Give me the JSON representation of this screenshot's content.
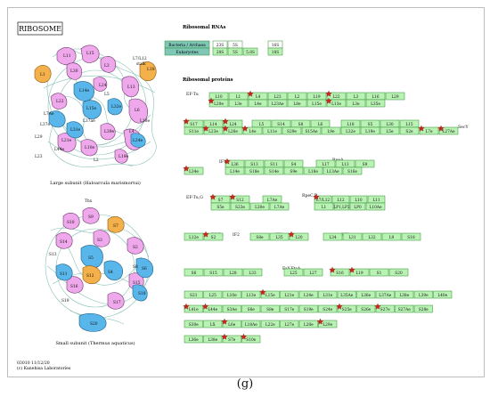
{
  "title": "RIBOSOME",
  "panel_label": "(g)",
  "footer": [
    "03010 11/12/20",
    "(c) Kanehisa Laboratories"
  ],
  "colors": {
    "box_green": "#b9f3b4",
    "box_border": "#2f8a2f",
    "teal_legend": "#7fc8b8",
    "pink": "#f0a8ec",
    "blue": "#59b6ea",
    "orange": "#f4b04a",
    "rna_line": "#7ab9b0",
    "star": "#d4231d"
  },
  "large_subunit": {
    "caption": "Large subunit (Haloarcula marismortui)",
    "labels": {
      "l11": "L11",
      "l15": "L15",
      "l7l12": "L7/L12",
      "stalk": "stalk",
      "l1": "L1",
      "l18": "L18",
      "l3": "L3",
      "l30": "L30",
      "l14e": "L14e",
      "l15e": "L15e",
      "l37e": "L37e",
      "l29": "L29",
      "l23": "L23",
      "l21e": "L21e",
      "l24e": "L24e",
      "l22": "L22",
      "l13": "L13",
      "l6": "L6",
      "l24": "L24",
      "l32e": "L32e",
      "l31e": "L31e",
      "l39e": "L39e",
      "l7ae": "L7Ae",
      "l37ae": "L37ae",
      "l4": "L4",
      "l19e": "L19e",
      "l5": "L5",
      "l10e": "L10e",
      "l44e": "L44e",
      "l18e": "L18e",
      "l2": "L2"
    }
  },
  "small_subunit": {
    "caption": "Small subunit (Thermus aquaticus)",
    "labels": {
      "thx": "Thx",
      "s10": "S10",
      "s9": "S9",
      "s7": "S7",
      "s14": "S14",
      "s3": "S3",
      "s2": "S2",
      "s11": "S11",
      "s13": "S13",
      "s5": "S5",
      "s12": "S12",
      "s4": "S4",
      "s8": "S8",
      "s6": "S6",
      "s15": "S15",
      "s17": "S17",
      "s16": "S16",
      "s18": "S18",
      "s19": "S19",
      "s20": "S20"
    }
  },
  "rna_section": {
    "heading": "Ribosomal RNAs",
    "legend": [
      "Bacteria / Archaea",
      "Eukaryotes"
    ],
    "bacteria": [
      "23S",
      "5S",
      "16S"
    ],
    "eukaryote": [
      "28S",
      "5S",
      "5.8S",
      "18S"
    ]
  },
  "protein_section": {
    "heading": "Ribosomal proteins",
    "labels": {
      "ef_tu": "EF-Tu",
      "sec_y": "SecY",
      "if1": "IF1",
      "rpe_a": "RpeA",
      "ef_tu_g": "EF-Tu,G",
      "rpe_c_b": "RpeC,B",
      "ef_tu_2": "EF-Tu",
      "if2": "IF2",
      "if3": "IF3",
      "rf1": "RF1",
      "faa": "FaY,FtsA"
    },
    "boxes": [
      {
        "id": "b1",
        "text": "L10",
        "star": false
      },
      {
        "id": "b2",
        "text": "L1",
        "star": false
      },
      {
        "id": "b3",
        "text": "L4",
        "star": true
      },
      {
        "id": "b4",
        "text": "L23",
        "star": false
      },
      {
        "id": "b5",
        "text": "L2",
        "star": false
      },
      {
        "id": "b6",
        "text": "L19",
        "star": false
      },
      {
        "id": "b7",
        "text": "L22",
        "star": true
      },
      {
        "id": "b8",
        "text": "L3",
        "star": false
      },
      {
        "id": "b9",
        "text": "L16",
        "star": false
      },
      {
        "id": "b10",
        "text": "L29",
        "star": false
      },
      {
        "id": "b11",
        "text": "L20e",
        "star": true
      },
      {
        "id": "b12",
        "text": "L3e",
        "star": false
      },
      {
        "id": "b13",
        "text": "L4e",
        "star": false
      },
      {
        "id": "b14",
        "text": "L23Ae",
        "star": false
      },
      {
        "id": "b15",
        "text": "L8e",
        "star": false
      },
      {
        "id": "b16",
        "text": "L15e",
        "star": false
      },
      {
        "id": "b17",
        "text": "L13e",
        "star": true
      },
      {
        "id": "b18",
        "text": "L3e",
        "star": false
      },
      {
        "id": "b19",
        "text": "L35e",
        "star": false
      },
      {
        "id": "b20",
        "text": "S17",
        "star": true
      },
      {
        "id": "b21",
        "text": "L14",
        "star": false
      },
      {
        "id": "b22",
        "text": "L24",
        "star": true
      },
      {
        "id": "b23",
        "text": "L5",
        "star": false
      },
      {
        "id": "b24",
        "text": "S14",
        "star": false
      },
      {
        "id": "b25",
        "text": "S8",
        "star": false
      },
      {
        "id": "b26",
        "text": "L6",
        "star": false
      },
      {
        "id": "b27",
        "text": "L18",
        "star": false
      },
      {
        "id": "b28",
        "text": "S5",
        "star": false
      },
      {
        "id": "b29",
        "text": "L30",
        "star": false
      },
      {
        "id": "b30",
        "text": "L15",
        "star": false
      },
      {
        "id": "b31",
        "text": "S11e",
        "star": false
      },
      {
        "id": "b32",
        "text": "L23e",
        "star": true
      },
      {
        "id": "b33",
        "text": "L26e",
        "star": true
      },
      {
        "id": "b34",
        "text": "L4e",
        "star": true
      },
      {
        "id": "b35",
        "text": "L11e",
        "star": false
      },
      {
        "id": "b36",
        "text": "S29e",
        "star": false
      },
      {
        "id": "b37",
        "text": "S15Ae",
        "star": false
      },
      {
        "id": "b38",
        "text": "L9e",
        "star": false
      },
      {
        "id": "b39",
        "text": "L32e",
        "star": false
      },
      {
        "id": "b40",
        "text": "L19e",
        "star": false
      },
      {
        "id": "b41",
        "text": "L5e",
        "star": false
      },
      {
        "id": "b42",
        "text": "S2e",
        "star": false
      },
      {
        "id": "b43",
        "text": "L7e",
        "star": true
      },
      {
        "id": "b44",
        "text": "L27Ae",
        "star": true
      },
      {
        "id": "b45",
        "text": "L36",
        "star": true
      },
      {
        "id": "b46",
        "text": "S13",
        "star": false
      },
      {
        "id": "b47",
        "text": "S11",
        "star": false
      },
      {
        "id": "b48",
        "text": "S4",
        "star": false
      },
      {
        "id": "b49",
        "text": "L17",
        "star": false
      },
      {
        "id": "b50",
        "text": "L13",
        "star": false
      },
      {
        "id": "b51",
        "text": "S9",
        "star": false
      },
      {
        "id": "b52",
        "text": "L34e",
        "star": true
      },
      {
        "id": "b53",
        "text": "L14e",
        "star": false
      },
      {
        "id": "b54",
        "text": "S18e",
        "star": false
      },
      {
        "id": "b55",
        "text": "S14e",
        "star": false
      },
      {
        "id": "b56",
        "text": "S9e",
        "star": false
      },
      {
        "id": "b57",
        "text": "L18e",
        "star": false
      },
      {
        "id": "b58",
        "text": "L13Ae",
        "star": false
      },
      {
        "id": "b59",
        "text": "S16e",
        "star": false
      },
      {
        "id": "b60",
        "text": "S7",
        "star": true
      },
      {
        "id": "b61",
        "text": "S12",
        "star": true
      },
      {
        "id": "b62",
        "text": "L7Ae",
        "star": false
      },
      {
        "id": "b63",
        "text": "S5e",
        "star": false
      },
      {
        "id": "b64",
        "text": "S23e",
        "star": false
      },
      {
        "id": "b65",
        "text": "L30e",
        "star": false
      },
      {
        "id": "b66",
        "text": "L7Ae",
        "star": false
      },
      {
        "id": "b67",
        "text": "L7/L12",
        "star": true
      },
      {
        "id": "b68",
        "text": "L12",
        "star": false
      },
      {
        "id": "b69",
        "text": "L10",
        "star": false
      },
      {
        "id": "b70",
        "text": "L11",
        "star": false
      },
      {
        "id": "b71",
        "text": "L1",
        "star": false
      },
      {
        "id": "b72",
        "text": "LP1,LP2",
        "star": false
      },
      {
        "id": "b73",
        "text": "LP0",
        "star": false
      },
      {
        "id": "b74",
        "text": "L10Ae",
        "star": false
      },
      {
        "id": "b75",
        "text": "L12e",
        "star": false
      },
      {
        "id": "b76",
        "text": "S2",
        "star": true
      },
      {
        "id": "b77",
        "text": "S8e",
        "star": false
      },
      {
        "id": "b78",
        "text": "L35",
        "star": false
      },
      {
        "id": "b79",
        "text": "L20",
        "star": true
      },
      {
        "id": "b80",
        "text": "L34",
        "star": false
      },
      {
        "id": "b81",
        "text": "L31",
        "star": false
      },
      {
        "id": "b82",
        "text": "L32",
        "star": false
      },
      {
        "id": "b83",
        "text": "L9",
        "star": false
      },
      {
        "id": "b84",
        "text": "S18",
        "star": false
      },
      {
        "id": "b85",
        "text": "S6",
        "star": false
      },
      {
        "id": "b86",
        "text": "S15",
        "star": false
      },
      {
        "id": "b87",
        "text": "L28",
        "star": false
      },
      {
        "id": "b88",
        "text": "L33",
        "star": false
      },
      {
        "id": "b89",
        "text": "L25",
        "star": false
      },
      {
        "id": "b90",
        "text": "L27",
        "star": false
      },
      {
        "id": "b91",
        "text": "S16",
        "star": true
      },
      {
        "id": "b92",
        "text": "L19",
        "star": true
      },
      {
        "id": "b93",
        "text": "S1",
        "star": false
      },
      {
        "id": "b94",
        "text": "S20",
        "star": false
      },
      {
        "id": "b95",
        "text": "S21",
        "star": false
      },
      {
        "id": "b96",
        "text": "L25",
        "star": false
      },
      {
        "id": "b97",
        "text": "L10e",
        "star": false
      },
      {
        "id": "b98",
        "text": "L13e",
        "star": false
      },
      {
        "id": "b99",
        "text": "L15e",
        "star": true
      },
      {
        "id": "b100",
        "text": "L21e",
        "star": false
      },
      {
        "id": "b101",
        "text": "L24e",
        "star": false
      },
      {
        "id": "b102",
        "text": "L31e",
        "star": false
      },
      {
        "id": "b103",
        "text": "L35Ae",
        "star": false
      },
      {
        "id": "b104",
        "text": "L36e",
        "star": false
      },
      {
        "id": "b105",
        "text": "L37Ae",
        "star": false
      },
      {
        "id": "b106",
        "text": "L38e",
        "star": false
      },
      {
        "id": "b107",
        "text": "L39e",
        "star": false
      },
      {
        "id": "b108",
        "text": "L40e",
        "star": false
      },
      {
        "id": "b109",
        "text": "L41e",
        "star": true
      },
      {
        "id": "b110",
        "text": "L44e",
        "star": true
      },
      {
        "id": "b111",
        "text": "S3Ae",
        "star": false
      },
      {
        "id": "b112",
        "text": "S6e",
        "star": false
      },
      {
        "id": "b113",
        "text": "S8e",
        "star": false
      },
      {
        "id": "b114",
        "text": "S17e",
        "star": false
      },
      {
        "id": "b115",
        "text": "S19e",
        "star": false
      },
      {
        "id": "b116",
        "text": "S24e",
        "star": false
      },
      {
        "id": "b117",
        "text": "S25e",
        "star": true
      },
      {
        "id": "b118",
        "text": "S26e",
        "star": false
      },
      {
        "id": "b119",
        "text": "S27e",
        "star": true
      },
      {
        "id": "b120",
        "text": "S27Ae",
        "star": false
      },
      {
        "id": "b121",
        "text": "S28e",
        "star": false
      },
      {
        "id": "b122",
        "text": "S30e",
        "star": false
      },
      {
        "id": "b123",
        "text": "LX",
        "star": false
      },
      {
        "id": "b124",
        "text": "L6e",
        "star": true
      },
      {
        "id": "b125",
        "text": "L18Ae",
        "star": false
      },
      {
        "id": "b126",
        "text": "L22e",
        "star": false
      },
      {
        "id": "b127",
        "text": "L27e",
        "star": false
      },
      {
        "id": "b128",
        "text": "L28e",
        "star": false
      },
      {
        "id": "b129",
        "text": "L29e",
        "star": true
      },
      {
        "id": "b130",
        "text": "L36e",
        "star": false
      },
      {
        "id": "b131",
        "text": "L38e",
        "star": false
      },
      {
        "id": "b132",
        "text": "S7e",
        "star": true
      },
      {
        "id": "b133",
        "text": "S10e",
        "star": true
      },
      {
        "id": "b134",
        "text": "S12e",
        "star": false
      },
      {
        "id": "b135",
        "text": "S21e",
        "star": false
      }
    ]
  }
}
